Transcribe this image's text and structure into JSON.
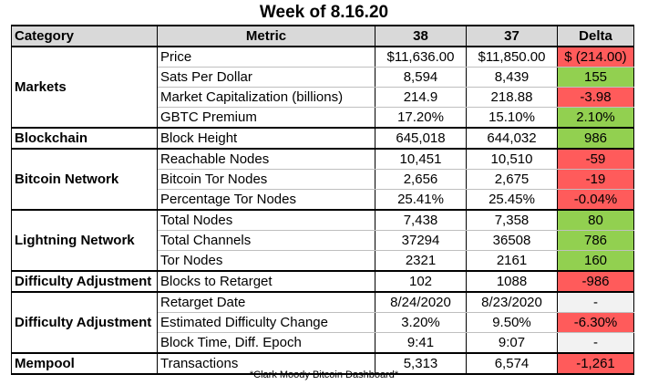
{
  "title": "Week of 8.16.20",
  "headers": {
    "category": "Category",
    "metric": "Metric",
    "col_a": "38",
    "col_b": "37",
    "delta": "Delta"
  },
  "groups": [
    {
      "category": "Markets",
      "rows": [
        {
          "metric": "Price",
          "a": "$11,636.00",
          "b": "$11,850.00",
          "delta": "$ (214.00)",
          "sign": "neg"
        },
        {
          "metric": "Sats Per Dollar",
          "a": "8,594",
          "b": "8,439",
          "delta": "155",
          "sign": "pos"
        },
        {
          "metric": "Market Capitalization (billions)",
          "a": "214.9",
          "b": "218.88",
          "delta": "-3.98",
          "sign": "neg"
        },
        {
          "metric": "GBTC Premium",
          "a": "17.20%",
          "b": "15.10%",
          "delta": "2.10%",
          "sign": "pos"
        }
      ]
    },
    {
      "category": "Blockchain",
      "rows": [
        {
          "metric": "Block Height",
          "a": "645,018",
          "b": "644,032",
          "delta": "986",
          "sign": "pos"
        }
      ]
    },
    {
      "category": "Bitcoin Network",
      "rows": [
        {
          "metric": "Reachable Nodes",
          "a": "10,451",
          "b": "10,510",
          "delta": "-59",
          "sign": "neg"
        },
        {
          "metric": "Bitcoin Tor Nodes",
          "a": "2,656",
          "b": "2,675",
          "delta": "-19",
          "sign": "neg"
        },
        {
          "metric": "Percentage Tor Nodes",
          "a": "25.41%",
          "b": "25.45%",
          "delta": "-0.04%",
          "sign": "neg"
        }
      ]
    },
    {
      "category": "Lightning Network",
      "rows": [
        {
          "metric": "Total Nodes",
          "a": "7,438",
          "b": "7,358",
          "delta": "80",
          "sign": "pos"
        },
        {
          "metric": "Total Channels",
          "a": "37294",
          "b": "36508",
          "delta": "786",
          "sign": "pos"
        },
        {
          "metric": "Tor Nodes",
          "a": "2321",
          "b": "2161",
          "delta": "160",
          "sign": "pos"
        }
      ]
    },
    {
      "category": "Difficulty Adjustment",
      "rows": [
        {
          "metric": "Blocks to Retarget",
          "a": "102",
          "b": "1088",
          "delta": "-986",
          "sign": "neg"
        }
      ]
    },
    {
      "category": "Difficulty Adjustment",
      "rows": [
        {
          "metric": "Retarget Date",
          "a": "8/24/2020",
          "b": "8/23/2020",
          "delta": "-",
          "sign": "neu"
        },
        {
          "metric": "Estimated Difficulty Change",
          "a": "3.20%",
          "b": "9.50%",
          "delta": "-6.30%",
          "sign": "neg"
        },
        {
          "metric": "Block Time, Diff. Epoch",
          "a": "9:41",
          "b": "9:07",
          "delta": "-",
          "sign": "neu"
        }
      ]
    },
    {
      "category": "Mempool",
      "rows": [
        {
          "metric": "Transactions",
          "a": "5,313",
          "b": "6,574",
          "delta": "-1,261",
          "sign": "neg"
        }
      ]
    }
  ],
  "footer": "*Clark Moody Bitcoin Dashboard*",
  "colors": {
    "positive": "#92d050",
    "negative": "#ff5b5b",
    "neutral": "#f2f2f2",
    "header": "#d9d9d9"
  }
}
